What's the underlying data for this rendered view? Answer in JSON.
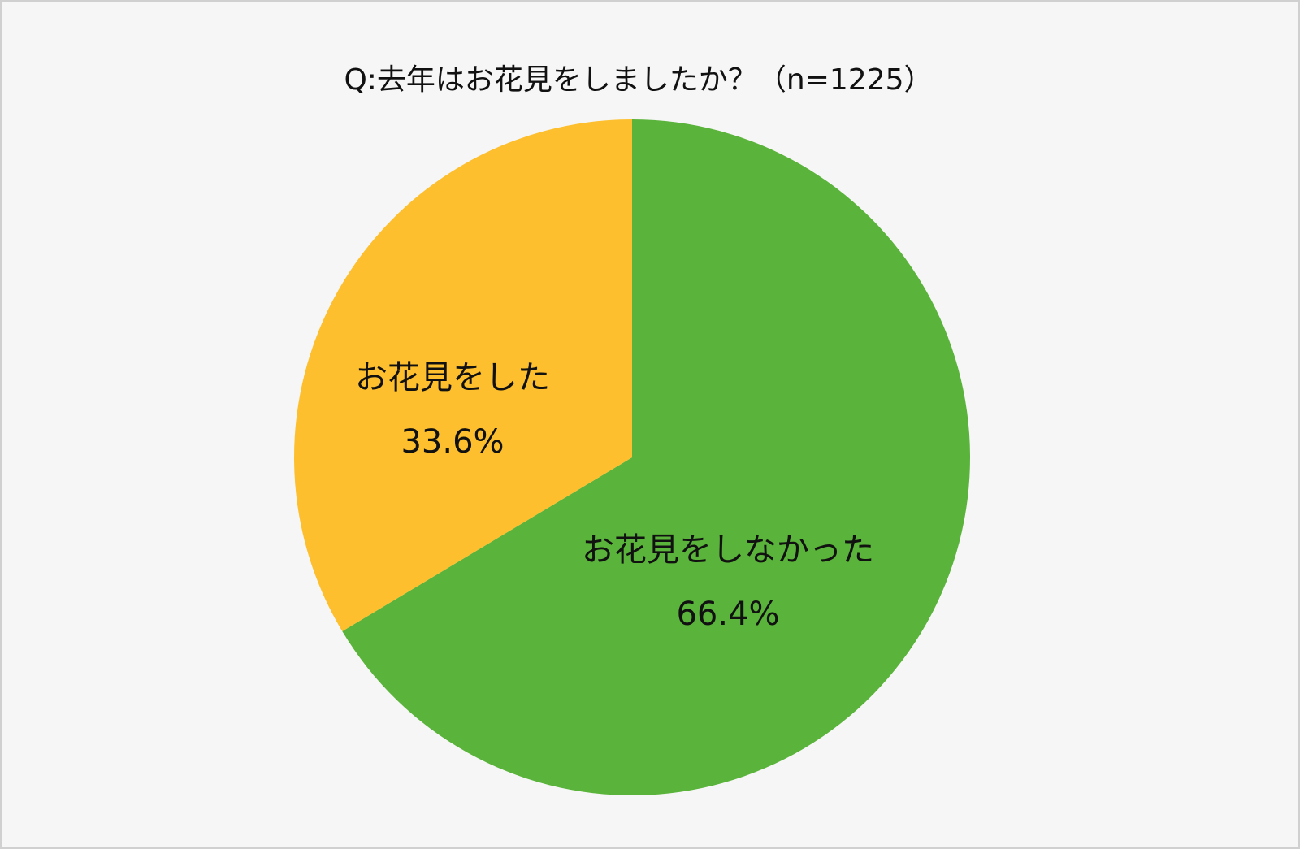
{
  "chart_data": {
    "type": "pie",
    "title": "Q:去年はお花見をしましたか？（n=1225）",
    "categories": [
      "お花見をしなかった",
      "お花見をした"
    ],
    "values": [
      66.4,
      33.6
    ],
    "value_labels": [
      "66.4%",
      "33.6%"
    ],
    "colors": [
      "#5ab33a",
      "#fdbf2d"
    ]
  }
}
